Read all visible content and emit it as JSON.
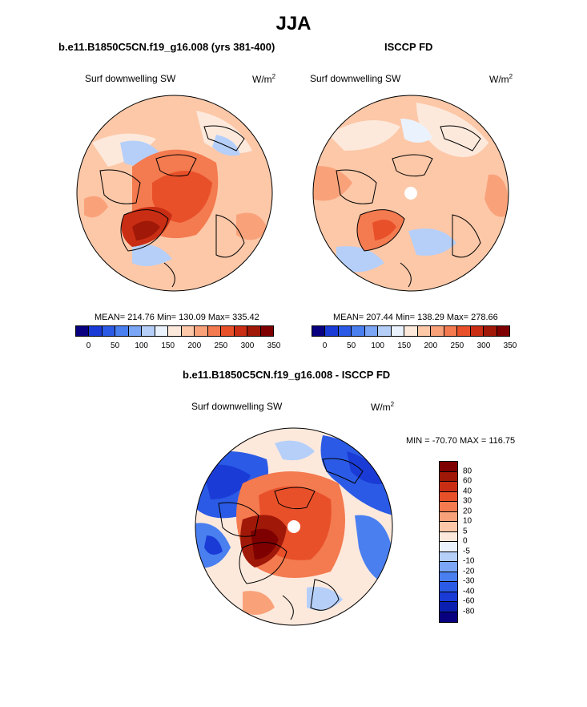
{
  "figure": {
    "title": "JJA",
    "panel1": {
      "title": "b.e11.B1850C5CN.f19_g16.008 (yrs 381-400)",
      "variable": "Surf downwelling SW",
      "units_base": "W/m",
      "units_exp": "2",
      "stats": "MEAN= 214.76   Min= 130.09   Max= 335.42"
    },
    "panel2": {
      "title": "ISCCP FD",
      "variable": "Surf downwelling SW",
      "units_base": "W/m",
      "units_exp": "2",
      "stats": "MEAN= 207.44   Min= 138.29   Max= 278.66"
    },
    "panel3": {
      "title": "b.e11.B1850C5CN.f19_g16.008 - ISCCP FD",
      "variable": "Surf downwelling SW",
      "units_base": "W/m",
      "units_exp": "2",
      "stats": "MIN = -70.70 MAX = 116.75"
    }
  },
  "colorbar_abs": {
    "colors": [
      "#08007f",
      "#1a3bd6",
      "#2b5be6",
      "#4a7ff0",
      "#7aa6f5",
      "#b5cff9",
      "#eaf2fd",
      "#fde9dc",
      "#fcc8a8",
      "#f9a27a",
      "#f47a4f",
      "#e8502a",
      "#c92e14",
      "#a01808",
      "#7f0000"
    ],
    "tick_labels": [
      "0",
      "50",
      "100",
      "150",
      "200",
      "250",
      "300",
      "350"
    ]
  },
  "colorbar_diff": {
    "colors_top_to_bottom": [
      "#7f0000",
      "#a01808",
      "#c92e14",
      "#e8502a",
      "#f47a4f",
      "#f9a27a",
      "#fcc8a8",
      "#fde9dc",
      "#eaf2fd",
      "#b5cff9",
      "#7aa6f5",
      "#4a7ff0",
      "#2b5be6",
      "#1a3bd6",
      "#0a1fb0",
      "#08007f"
    ],
    "tick_labels": [
      "80",
      "60",
      "40",
      "30",
      "20",
      "10",
      "5",
      "0",
      "-5",
      "-10",
      "-20",
      "-30",
      "-40",
      "-60",
      "-80"
    ]
  }
}
